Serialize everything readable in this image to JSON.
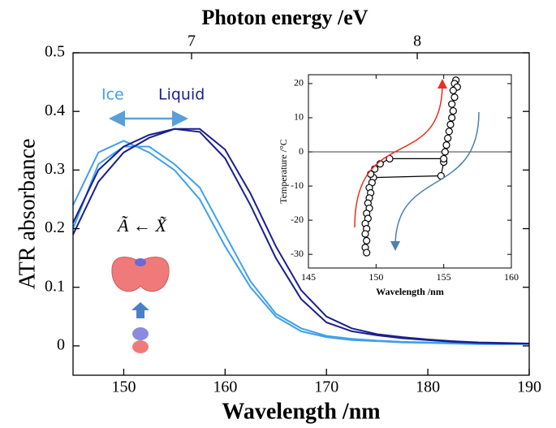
{
  "chart_data": [
    {
      "type": "line",
      "xlabel": "Wavelength /nm",
      "ylabel": "ATR absorbance",
      "x2label": "Photon energy /eV",
      "annotations": [
        "Ã ← X̃"
      ],
      "x": [
        145,
        147.5,
        150,
        152.5,
        155,
        157.5,
        160,
        162.5,
        165,
        167.5,
        170,
        172.5,
        175,
        177.5,
        180,
        182.5,
        185,
        187.5,
        190
      ],
      "series": [
        {
          "name": "Ice",
          "color": "#3fa0ec",
          "values": [
            0.24,
            0.33,
            0.35,
            0.33,
            0.3,
            0.25,
            0.17,
            0.1,
            0.05,
            0.025,
            0.015,
            0.01,
            0.008,
            0.006,
            0.005,
            0.004,
            0.003,
            0.003,
            0.003
          ]
        },
        {
          "color": "#3fa0ec",
          "values": [
            0.2,
            0.31,
            0.34,
            0.34,
            0.31,
            0.27,
            0.19,
            0.11,
            0.055,
            0.03,
            0.017,
            0.012,
            0.009,
            0.007,
            0.006,
            0.005,
            0.004,
            0.004,
            0.003
          ]
        },
        {
          "name": "Liquid",
          "color": "#1a1f8f",
          "values": [
            0.21,
            0.3,
            0.34,
            0.36,
            0.37,
            0.365,
            0.32,
            0.24,
            0.15,
            0.08,
            0.04,
            0.025,
            0.018,
            0.013,
            0.01,
            0.007,
            0.005,
            0.004,
            0.004
          ]
        },
        {
          "color": "#1a1f8f",
          "values": [
            0.19,
            0.28,
            0.33,
            0.355,
            0.37,
            0.37,
            0.335,
            0.26,
            0.17,
            0.095,
            0.05,
            0.03,
            0.02,
            0.015,
            0.011,
            0.008,
            0.006,
            0.005,
            0.004
          ]
        }
      ],
      "xlim": [
        145,
        190
      ],
      "ylim": [
        -0.05,
        0.5
      ],
      "xticks": [
        150,
        160,
        170,
        180,
        190
      ],
      "yticks": [
        0,
        0.1,
        0.2,
        0.3,
        0.4,
        0.5
      ],
      "x2lim": [
        6.475,
        8.496
      ],
      "x2ticks": [
        7,
        8
      ]
    },
    {
      "type": "line",
      "markers": true,
      "xlabel": "Wavelength /nm",
      "ylabel": "Temperature /°C",
      "series": [
        {
          "color": "#000000",
          "x": [
            155.9,
            155.8,
            156.0,
            155.7,
            155.8,
            155.6,
            155.7,
            155.6,
            155.5,
            155.4,
            155.3,
            155.2,
            155.1,
            155.0,
            154.8,
            149.8,
            149.7,
            149.5,
            149.6,
            149.5,
            149.4,
            149.5,
            149.3,
            149.4,
            149.2,
            149.3,
            149.2,
            149.3,
            149.2,
            149.3
          ],
          "values": [
            21,
            20,
            19,
            18,
            16,
            14,
            12,
            10,
            8,
            6,
            4,
            2,
            0,
            -3,
            -7,
            -7.5,
            -9,
            -10.5,
            -12,
            -13.5,
            -15,
            -16.5,
            -18,
            -19.5,
            -21,
            -22.5,
            -24,
            -26,
            -28,
            -29.5
          ]
        },
        {
          "color": "#000000",
          "x": [
            155.0,
            151.0,
            150.3,
            149.9,
            149.6
          ],
          "values": [
            -2,
            -2,
            -3.5,
            -5,
            -6.5
          ]
        }
      ],
      "hline": 0,
      "xlim": [
        145,
        160
      ],
      "ylim": [
        -34,
        22.6
      ],
      "xticks": [
        145,
        150,
        155,
        160
      ],
      "yticks": [
        -30,
        -20,
        -10,
        0,
        10,
        20
      ]
    }
  ]
}
